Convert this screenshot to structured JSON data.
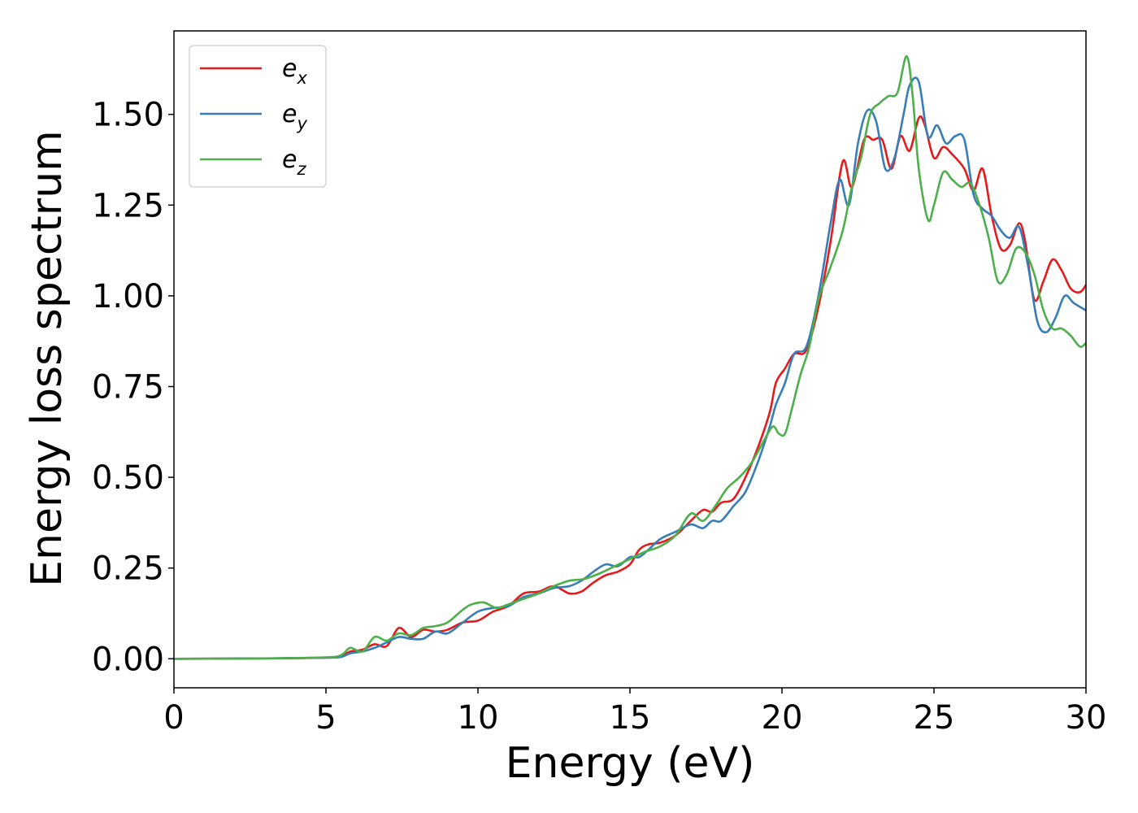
{
  "chart_data": {
    "type": "line",
    "title": "",
    "xlabel": "Energy (eV)",
    "ylabel": "Energy loss spectrum",
    "xlim": [
      0,
      30
    ],
    "ylim": [
      -0.08,
      1.73
    ],
    "xticks": [
      0,
      5,
      10,
      15,
      20,
      25,
      30
    ],
    "xtick_labels": [
      "0",
      "5",
      "10",
      "15",
      "20",
      "25",
      "30"
    ],
    "yticks": [
      0.0,
      0.25,
      0.5,
      0.75,
      1.0,
      1.25,
      1.5
    ],
    "ytick_labels": [
      "0.00",
      "0.25",
      "0.50",
      "0.75",
      "1.00",
      "1.25",
      "1.50"
    ],
    "grid": false,
    "legend_position": "top-left",
    "series": [
      {
        "name": "e_x",
        "label_base": "e",
        "label_sub": "x",
        "color": "#e41a1c",
        "x": [
          0,
          3,
          5,
          5.5,
          5.8,
          6.2,
          6.6,
          7.0,
          7.4,
          7.8,
          8.2,
          8.6,
          9.0,
          9.5,
          10.0,
          10.5,
          11.0,
          11.5,
          12.0,
          12.5,
          13.0,
          13.4,
          13.8,
          14.2,
          14.6,
          15.0,
          15.3,
          15.6,
          16.0,
          16.5,
          17.0,
          17.4,
          17.7,
          18.0,
          18.4,
          18.8,
          19.2,
          19.6,
          19.8,
          20.1,
          20.4,
          20.8,
          21.2,
          21.6,
          22.0,
          22.3,
          22.7,
          23.0,
          23.3,
          23.6,
          23.9,
          24.2,
          24.5,
          24.7,
          25.0,
          25.3,
          25.6,
          26.0,
          26.3,
          26.6,
          26.9,
          27.2,
          27.5,
          27.8,
          28.0,
          28.3,
          28.6,
          28.9,
          29.2,
          29.5,
          29.8,
          30.0
        ],
        "y": [
          0.0,
          0.001,
          0.003,
          0.008,
          0.02,
          0.025,
          0.04,
          0.035,
          0.085,
          0.06,
          0.08,
          0.075,
          0.08,
          0.1,
          0.105,
          0.13,
          0.145,
          0.18,
          0.185,
          0.2,
          0.18,
          0.185,
          0.21,
          0.23,
          0.24,
          0.26,
          0.3,
          0.315,
          0.32,
          0.34,
          0.38,
          0.41,
          0.405,
          0.43,
          0.44,
          0.5,
          0.58,
          0.68,
          0.76,
          0.8,
          0.84,
          0.85,
          0.97,
          1.15,
          1.37,
          1.3,
          1.43,
          1.43,
          1.43,
          1.35,
          1.44,
          1.4,
          1.49,
          1.47,
          1.38,
          1.41,
          1.39,
          1.35,
          1.29,
          1.35,
          1.22,
          1.13,
          1.14,
          1.2,
          1.15,
          0.99,
          1.04,
          1.1,
          1.07,
          1.02,
          1.01,
          1.03
        ]
      },
      {
        "name": "e_y",
        "label_base": "e",
        "label_sub": "y",
        "color": "#377eb8",
        "x": [
          0,
          3,
          5,
          5.5,
          5.8,
          6.2,
          6.6,
          7.0,
          7.4,
          7.8,
          8.2,
          8.6,
          9.0,
          9.5,
          10.0,
          10.5,
          11.0,
          11.5,
          12.0,
          12.5,
          13.0,
          13.4,
          13.8,
          14.2,
          14.6,
          15.0,
          15.3,
          15.6,
          16.0,
          16.5,
          17.0,
          17.4,
          17.7,
          18.0,
          18.4,
          18.8,
          19.2,
          19.6,
          19.8,
          20.1,
          20.4,
          20.8,
          21.2,
          21.6,
          21.9,
          22.2,
          22.5,
          22.8,
          23.1,
          23.4,
          23.7,
          24.0,
          24.2,
          24.5,
          24.8,
          25.1,
          25.4,
          25.7,
          26.0,
          26.3,
          26.6,
          26.9,
          27.2,
          27.5,
          27.8,
          28.1,
          28.4,
          28.7,
          29.0,
          29.3,
          29.6,
          30.0
        ],
        "y": [
          0.0,
          0.001,
          0.003,
          0.005,
          0.015,
          0.02,
          0.03,
          0.045,
          0.06,
          0.055,
          0.055,
          0.075,
          0.07,
          0.1,
          0.13,
          0.14,
          0.145,
          0.17,
          0.18,
          0.195,
          0.2,
          0.215,
          0.24,
          0.26,
          0.255,
          0.28,
          0.28,
          0.3,
          0.33,
          0.35,
          0.37,
          0.36,
          0.38,
          0.38,
          0.42,
          0.46,
          0.54,
          0.64,
          0.7,
          0.76,
          0.84,
          0.86,
          1.0,
          1.2,
          1.32,
          1.25,
          1.42,
          1.51,
          1.48,
          1.35,
          1.38,
          1.5,
          1.58,
          1.59,
          1.44,
          1.47,
          1.42,
          1.44,
          1.43,
          1.28,
          1.24,
          1.22,
          1.18,
          1.16,
          1.19,
          1.08,
          0.93,
          0.9,
          0.94,
          1.0,
          0.98,
          0.96
        ]
      },
      {
        "name": "e_z",
        "label_base": "e",
        "label_sub": "z",
        "color": "#4daf4a",
        "x": [
          0,
          3,
          5,
          5.5,
          5.8,
          6.2,
          6.6,
          7.0,
          7.4,
          7.8,
          8.2,
          8.6,
          9.0,
          9.5,
          9.8,
          10.2,
          10.6,
          11.0,
          11.5,
          12.0,
          12.5,
          13.0,
          13.5,
          14.0,
          14.5,
          15.0,
          15.5,
          16.0,
          16.5,
          17.0,
          17.4,
          17.8,
          18.2,
          18.6,
          19.0,
          19.4,
          19.7,
          19.9,
          20.1,
          20.3,
          20.6,
          20.9,
          21.2,
          21.6,
          22.0,
          22.3,
          22.6,
          22.9,
          23.2,
          23.5,
          23.8,
          24.1,
          24.3,
          24.5,
          24.8,
          25.0,
          25.3,
          25.6,
          25.9,
          26.2,
          26.5,
          26.8,
          27.1,
          27.4,
          27.7,
          28.0,
          28.3,
          28.6,
          28.9,
          29.2,
          29.5,
          29.8,
          30.0
        ],
        "y": [
          0.0,
          0.001,
          0.004,
          0.01,
          0.03,
          0.02,
          0.06,
          0.05,
          0.07,
          0.065,
          0.085,
          0.09,
          0.1,
          0.135,
          0.15,
          0.155,
          0.14,
          0.15,
          0.165,
          0.18,
          0.2,
          0.215,
          0.22,
          0.235,
          0.255,
          0.275,
          0.295,
          0.31,
          0.34,
          0.4,
          0.38,
          0.42,
          0.47,
          0.5,
          0.54,
          0.6,
          0.64,
          0.62,
          0.62,
          0.68,
          0.78,
          0.86,
          0.99,
          1.08,
          1.18,
          1.3,
          1.38,
          1.5,
          1.53,
          1.55,
          1.56,
          1.66,
          1.55,
          1.35,
          1.21,
          1.25,
          1.34,
          1.32,
          1.3,
          1.31,
          1.25,
          1.16,
          1.04,
          1.06,
          1.13,
          1.12,
          1.06,
          0.96,
          0.91,
          0.91,
          0.89,
          0.86,
          0.87
        ]
      }
    ]
  }
}
